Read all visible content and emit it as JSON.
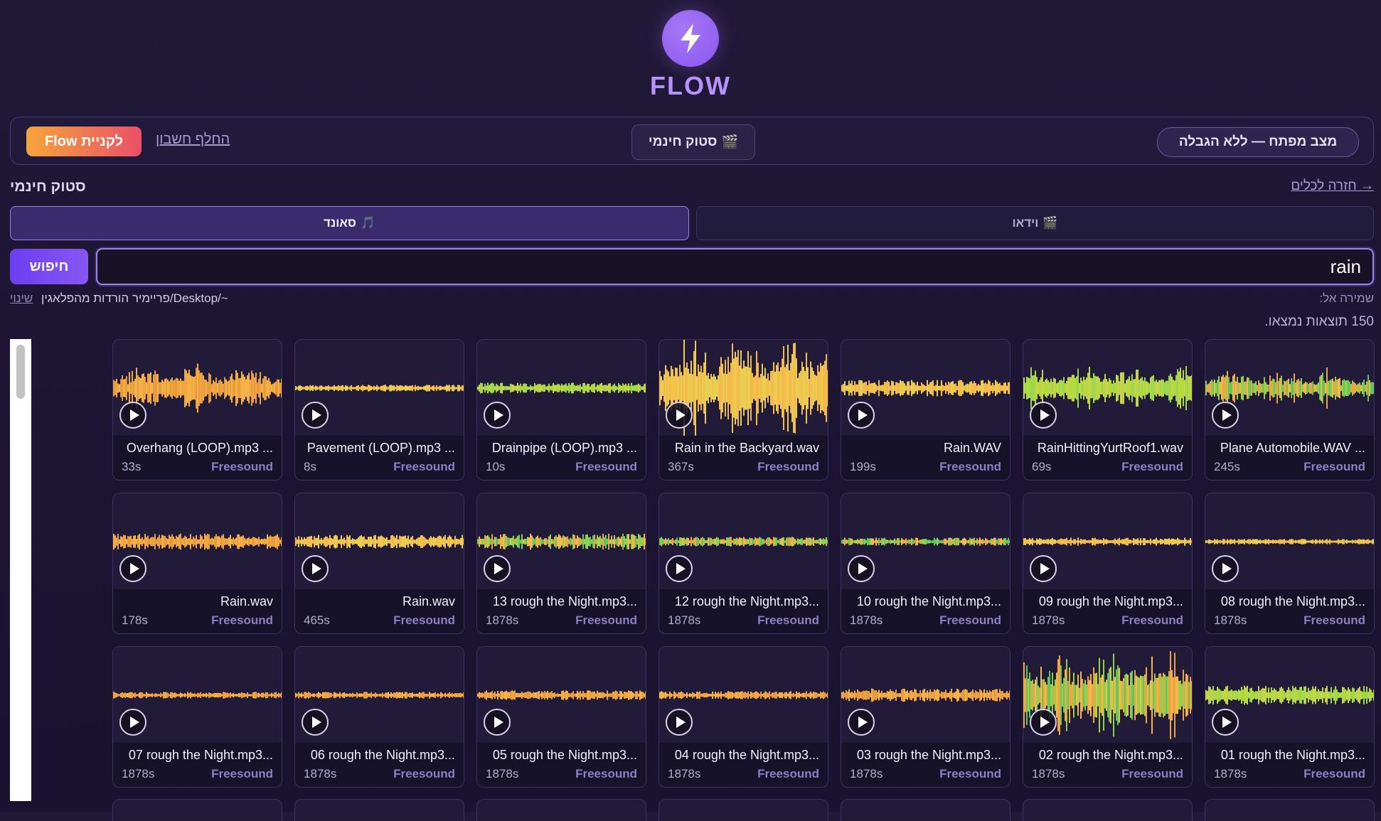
{
  "brand": {
    "name": "FLOW",
    "logo_icon": "lightning-bolt-icon",
    "accent": "#9a68f3"
  },
  "topbar": {
    "buy_label": "לקניית Flow",
    "switch_account": "החלף חשבון",
    "stock_label": "סטוק חינמי",
    "stock_icon": "🎬",
    "dev_mode": "מצב מפתח — ללא הגבלה"
  },
  "section": {
    "title": "סטוק חינמי",
    "back_link": "→ חזרה לכלים"
  },
  "tabs": [
    {
      "icon": "🎵",
      "label": "סאונד",
      "active": true
    },
    {
      "icon": "🎬",
      "label": "וידאו",
      "active": false
    }
  ],
  "search": {
    "button_label": "חיפוש",
    "query": "rain"
  },
  "save": {
    "label": "שמירה אל:",
    "path": "~/Desktop/פריימיר הורדות מהפלאגין",
    "change": "שינוי"
  },
  "results": {
    "count_text": "150 תוצאות נמצאו."
  },
  "cards": [
    {
      "name": "Plane Automobile.WAV ...",
      "duration": "245s",
      "source": "Freesound",
      "palette": "mix",
      "amp": 0.35
    },
    {
      "name": "RainHittingYurtRoof1.wav",
      "duration": "69s",
      "source": "Freesound",
      "palette": "green",
      "amp": 0.45
    },
    {
      "name": "Rain.WAV",
      "duration": "199s",
      "source": "Freesound",
      "palette": "yellow",
      "amp": 0.12
    },
    {
      "name": "Rain in the Backyard.wav",
      "duration": "367s",
      "source": "Freesound",
      "palette": "yellow",
      "amp": 0.95
    },
    {
      "name": "Drainpipe (LOOP).mp3 ...",
      "duration": "10s",
      "source": "Freesound",
      "palette": "green",
      "amp": 0.08
    },
    {
      "name": "Pavement (LOOP).mp3 ...",
      "duration": "8s",
      "source": "Freesound",
      "palette": "yellow",
      "amp": 0.05
    },
    {
      "name": "Overhang (LOOP).mp3 ...",
      "duration": "33s",
      "source": "Freesound",
      "palette": "orange",
      "amp": 0.45
    },
    {
      "name": "08 rough the Night.mp3...",
      "duration": "1878s",
      "source": "Freesound",
      "palette": "yellow",
      "amp": 0.04
    },
    {
      "name": "09 rough the Night.mp3...",
      "duration": "1878s",
      "source": "Freesound",
      "palette": "yellow",
      "amp": 0.06
    },
    {
      "name": "10 rough the Night.mp3...",
      "duration": "1878s",
      "source": "Freesound",
      "palette": "mix",
      "amp": 0.06
    },
    {
      "name": "12 rough the Night.mp3...",
      "duration": "1878s",
      "source": "Freesound",
      "palette": "mix",
      "amp": 0.07
    },
    {
      "name": "13 rough the Night.mp3...",
      "duration": "1878s",
      "source": "Freesound",
      "palette": "mix",
      "amp": 0.12
    },
    {
      "name": "Rain.wav",
      "duration": "465s",
      "source": "Freesound",
      "palette": "yellow",
      "amp": 0.1
    },
    {
      "name": "Rain.wav",
      "duration": "178s",
      "source": "Freesound",
      "palette": "orange",
      "amp": 0.12
    },
    {
      "name": "01 rough the Night.mp3...",
      "duration": "1878s",
      "source": "Freesound",
      "palette": "green",
      "amp": 0.14
    },
    {
      "name": "02 rough the Night.mp3...",
      "duration": "1878s",
      "source": "Freesound",
      "palette": "mix",
      "amp": 0.85
    },
    {
      "name": "03 rough the Night.mp3...",
      "duration": "1878s",
      "source": "Freesound",
      "palette": "orange",
      "amp": 0.1
    },
    {
      "name": "04 rough the Night.mp3...",
      "duration": "1878s",
      "source": "Freesound",
      "palette": "orange",
      "amp": 0.06
    },
    {
      "name": "05 rough the Night.mp3...",
      "duration": "1878s",
      "source": "Freesound",
      "palette": "orange",
      "amp": 0.07
    },
    {
      "name": "06 rough the Night.mp3...",
      "duration": "1878s",
      "source": "Freesound",
      "palette": "orange",
      "amp": 0.05
    },
    {
      "name": "07 rough the Night.mp3...",
      "duration": "1878s",
      "source": "Freesound",
      "palette": "orange",
      "amp": 0.05
    }
  ],
  "palettes": {
    "green": [
      "#9bd84a",
      "#b6d93f",
      "#c8d24a"
    ],
    "yellow": [
      "#f3c24a",
      "#f5b84b",
      "#e8cf52"
    ],
    "orange": [
      "#f1a640",
      "#f4b348",
      "#e89b3d"
    ],
    "mix": [
      "#f3b94a",
      "#8fd24f",
      "#5fc95a",
      "#f0a542"
    ]
  }
}
